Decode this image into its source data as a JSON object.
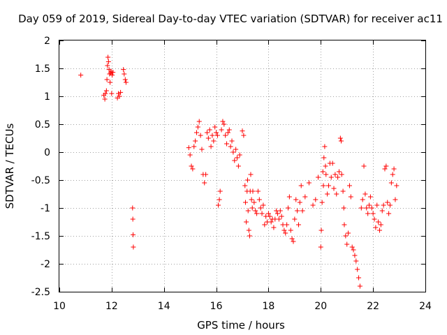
{
  "chart_data": {
    "type": "scatter",
    "title": "Day 059 of 2019, Sidereal Day-to-day VTEC variation (SDTVAR) for receiver ac11",
    "xlabel": "GPS time / hours",
    "ylabel": "SDTVAR / TECUs",
    "xlim": [
      10,
      24
    ],
    "ylim": [
      -2.5,
      2
    ],
    "x_ticks": [
      10,
      12,
      14,
      16,
      18,
      20,
      22,
      24
    ],
    "y_ticks": [
      -2.5,
      -2,
      -1.5,
      -1,
      -0.5,
      0,
      0.5,
      1,
      1.5,
      2
    ],
    "x_tick_labels": [
      "10",
      "12",
      "14",
      "16",
      "18",
      "20",
      "22",
      "24"
    ],
    "y_tick_labels": [
      "-2.5",
      "-2",
      "-1.5",
      "-1",
      "-0.5",
      "0",
      "0.5",
      "1",
      "1.5",
      "2"
    ],
    "grid": true,
    "marker": "+",
    "color": "#ff0000",
    "series": [
      {
        "name": "SDTVAR",
        "points": [
          [
            10.82,
            1.38
          ],
          [
            11.7,
            1.02
          ],
          [
            11.74,
            0.95
          ],
          [
            11.76,
            1.05
          ],
          [
            11.8,
            1.1
          ],
          [
            11.82,
            1.3
          ],
          [
            11.84,
            1.55
          ],
          [
            11.86,
            1.7
          ],
          [
            11.88,
            1.62
          ],
          [
            11.9,
            1.48
          ],
          [
            11.92,
            1.4
          ],
          [
            11.94,
            1.25
          ],
          [
            11.96,
            1.42
          ],
          [
            11.98,
            1.45
          ],
          [
            12.0,
            1.05
          ],
          [
            12.02,
            1.38
          ],
          [
            12.05,
            1.43
          ],
          [
            12.22,
            0.97
          ],
          [
            12.26,
            1.05
          ],
          [
            12.3,
            1.0
          ],
          [
            12.34,
            1.07
          ],
          [
            12.45,
            1.48
          ],
          [
            12.48,
            1.4
          ],
          [
            12.52,
            1.3
          ],
          [
            12.55,
            1.25
          ],
          [
            12.8,
            -1.0
          ],
          [
            12.81,
            -1.2
          ],
          [
            12.82,
            -1.48
          ],
          [
            12.83,
            -1.7
          ],
          [
            14.95,
            0.08
          ],
          [
            15.0,
            -0.05
          ],
          [
            15.05,
            -0.25
          ],
          [
            15.1,
            -0.3
          ],
          [
            15.15,
            0.1
          ],
          [
            15.2,
            0.2
          ],
          [
            15.25,
            0.35
          ],
          [
            15.3,
            0.45
          ],
          [
            15.35,
            0.55
          ],
          [
            15.4,
            0.3
          ],
          [
            15.45,
            0.05
          ],
          [
            15.5,
            -0.4
          ],
          [
            15.55,
            -0.55
          ],
          [
            15.6,
            -0.4
          ],
          [
            15.65,
            0.35
          ],
          [
            15.7,
            0.25
          ],
          [
            15.75,
            0.4
          ],
          [
            15.8,
            0.1
          ],
          [
            15.85,
            0.3
          ],
          [
            15.9,
            0.2
          ],
          [
            15.95,
            0.45
          ],
          [
            16.0,
            0.35
          ],
          [
            16.05,
            0.3
          ],
          [
            16.08,
            -0.95
          ],
          [
            16.12,
            -0.85
          ],
          [
            16.15,
            -0.7
          ],
          [
            16.2,
            0.4
          ],
          [
            16.25,
            0.55
          ],
          [
            16.3,
            0.5
          ],
          [
            16.35,
            0.3
          ],
          [
            16.4,
            0.15
          ],
          [
            16.45,
            0.35
          ],
          [
            16.5,
            0.4
          ],
          [
            16.55,
            0.1
          ],
          [
            16.6,
            0.2
          ],
          [
            16.65,
            0.0
          ],
          [
            16.7,
            -0.15
          ],
          [
            16.75,
            0.05
          ],
          [
            16.8,
            -0.1
          ],
          [
            16.85,
            -0.25
          ],
          [
            16.9,
            -0.05
          ],
          [
            17.0,
            0.38
          ],
          [
            17.05,
            0.3
          ],
          [
            17.1,
            -0.6
          ],
          [
            17.12,
            -0.9
          ],
          [
            17.15,
            -1.25
          ],
          [
            17.18,
            -0.7
          ],
          [
            17.2,
            -0.5
          ],
          [
            17.22,
            -1.05
          ],
          [
            17.25,
            -1.4
          ],
          [
            17.28,
            -1.5
          ],
          [
            17.3,
            -0.7
          ],
          [
            17.32,
            -0.4
          ],
          [
            17.35,
            -0.85
          ],
          [
            17.38,
            -1.0
          ],
          [
            17.4,
            -0.7
          ],
          [
            17.45,
            -0.9
          ],
          [
            17.5,
            -1.05
          ],
          [
            17.55,
            -1.1
          ],
          [
            17.6,
            -0.7
          ],
          [
            17.65,
            -0.85
          ],
          [
            17.7,
            -1.0
          ],
          [
            17.75,
            -1.1
          ],
          [
            17.8,
            -0.95
          ],
          [
            17.85,
            -1.3
          ],
          [
            17.9,
            -1.15
          ],
          [
            17.95,
            -1.25
          ],
          [
            18.0,
            -1.1
          ],
          [
            18.05,
            -1.15
          ],
          [
            18.1,
            -1.25
          ],
          [
            18.15,
            -1.2
          ],
          [
            18.2,
            -1.35
          ],
          [
            18.25,
            -1.2
          ],
          [
            18.3,
            -1.05
          ],
          [
            18.35,
            -1.1
          ],
          [
            18.4,
            -1.2
          ],
          [
            18.45,
            -1.05
          ],
          [
            18.5,
            -1.15
          ],
          [
            18.55,
            -1.3
          ],
          [
            18.6,
            -1.4
          ],
          [
            18.65,
            -1.45
          ],
          [
            18.7,
            -1.3
          ],
          [
            18.75,
            -1.0
          ],
          [
            18.8,
            -0.8
          ],
          [
            18.85,
            -1.4
          ],
          [
            18.9,
            -1.55
          ],
          [
            18.95,
            -1.6
          ],
          [
            19.0,
            -1.2
          ],
          [
            19.05,
            -0.85
          ],
          [
            19.1,
            -1.05
          ],
          [
            19.15,
            -1.3
          ],
          [
            19.2,
            -0.9
          ],
          [
            19.25,
            -0.6
          ],
          [
            19.3,
            -1.05
          ],
          [
            19.4,
            -0.8
          ],
          [
            19.55,
            -0.55
          ],
          [
            19.7,
            -0.95
          ],
          [
            19.8,
            -0.85
          ],
          [
            19.9,
            -0.45
          ],
          [
            20.0,
            -1.7
          ],
          [
            20.02,
            -1.4
          ],
          [
            20.05,
            -0.9
          ],
          [
            20.08,
            -0.35
          ],
          [
            20.1,
            -0.6
          ],
          [
            20.12,
            -0.1
          ],
          [
            20.15,
            0.1
          ],
          [
            20.18,
            -0.25
          ],
          [
            20.2,
            -0.4
          ],
          [
            20.25,
            -0.75
          ],
          [
            20.3,
            -0.6
          ],
          [
            20.35,
            -0.2
          ],
          [
            20.4,
            -0.45
          ],
          [
            20.45,
            -0.2
          ],
          [
            20.5,
            -0.65
          ],
          [
            20.55,
            -0.4
          ],
          [
            20.6,
            -0.75
          ],
          [
            20.65,
            -0.45
          ],
          [
            20.7,
            -0.35
          ],
          [
            20.75,
            0.25
          ],
          [
            20.78,
            0.2
          ],
          [
            20.8,
            -0.4
          ],
          [
            20.85,
            -0.7
          ],
          [
            20.88,
            -1.0
          ],
          [
            20.9,
            -1.3
          ],
          [
            20.95,
            -1.5
          ],
          [
            21.0,
            -1.65
          ],
          [
            21.05,
            -1.45
          ],
          [
            21.1,
            -0.6
          ],
          [
            21.15,
            -0.8
          ],
          [
            21.2,
            -1.7
          ],
          [
            21.25,
            -1.75
          ],
          [
            21.3,
            -1.85
          ],
          [
            21.35,
            -1.95
          ],
          [
            21.4,
            -2.1
          ],
          [
            21.45,
            -2.25
          ],
          [
            21.5,
            -2.4
          ],
          [
            21.55,
            -1.0
          ],
          [
            21.6,
            -0.85
          ],
          [
            21.65,
            -0.25
          ],
          [
            21.7,
            -0.75
          ],
          [
            21.75,
            -1.0
          ],
          [
            21.8,
            -1.1
          ],
          [
            21.85,
            -0.95
          ],
          [
            21.9,
            -0.8
          ],
          [
            21.95,
            -1.0
          ],
          [
            22.0,
            -1.1
          ],
          [
            22.05,
            -1.2
          ],
          [
            22.1,
            -1.35
          ],
          [
            22.15,
            -0.95
          ],
          [
            22.2,
            -1.25
          ],
          [
            22.25,
            -1.4
          ],
          [
            22.3,
            -1.3
          ],
          [
            22.35,
            -1.05
          ],
          [
            22.4,
            -0.95
          ],
          [
            22.45,
            -0.3
          ],
          [
            22.5,
            -0.25
          ],
          [
            22.55,
            -0.9
          ],
          [
            22.6,
            -1.1
          ],
          [
            22.65,
            -0.95
          ],
          [
            22.7,
            -0.55
          ],
          [
            22.75,
            -0.4
          ],
          [
            22.8,
            -0.3
          ],
          [
            22.85,
            -0.85
          ],
          [
            22.9,
            -0.6
          ]
        ]
      }
    ]
  }
}
